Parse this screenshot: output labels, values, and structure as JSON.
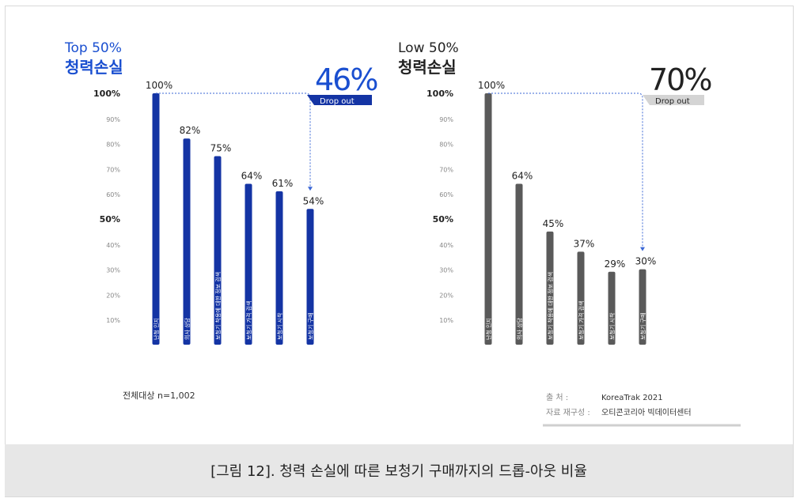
{
  "colors": {
    "top_bar": "#1434a4",
    "low_bar": "#5a5a5a",
    "top_title": "#1a4fd0",
    "low_title": "#222222",
    "low_badge": "#d4d4d4"
  },
  "chart_data": [
    {
      "type": "bar",
      "title": "Top 50%",
      "subtitle": "청력손실",
      "ylim": [
        0,
        100
      ],
      "y_ticks": [
        "10%",
        "20%",
        "30%",
        "40%",
        "50%",
        "60%",
        "70%",
        "80%",
        "90%",
        "100%"
      ],
      "categories": [
        "난청 인지",
        "의사 상담",
        "보청기 착용에 대한 정보 검색",
        "보청기 가격 검색",
        "보청기 시착",
        "보청기 구매"
      ],
      "values": [
        100,
        82,
        75,
        64,
        61,
        54
      ],
      "value_labels": [
        "100%",
        "82%",
        "75%",
        "64%",
        "61%",
        "54%"
      ],
      "drop_value": "46%",
      "drop_label": "Drop out"
    },
    {
      "type": "bar",
      "title": "Low 50%",
      "subtitle": "청력손실",
      "ylim": [
        0,
        100
      ],
      "y_ticks": [
        "10%",
        "20%",
        "30%",
        "40%",
        "50%",
        "60%",
        "70%",
        "80%",
        "90%",
        "100%"
      ],
      "categories": [
        "난청 인지",
        "의사 상담",
        "보청기 착용에 대한 정보 검색",
        "보청기 가격 검색",
        "보청기 시착",
        "보청기 구매"
      ],
      "values": [
        100,
        64,
        45,
        37,
        29,
        30
      ],
      "value_labels": [
        "100%",
        "64%",
        "45%",
        "37%",
        "29%",
        "30%"
      ],
      "drop_value": "70%",
      "drop_label": "Drop out"
    }
  ],
  "footnote_left": "전체대상 n=1,002",
  "source_label": "출        처 :",
  "source_value": "KoreaTrak 2021",
  "recompose_label": "자료 재구성 :",
  "recompose_value": "오티콘코리아 빅데이터센터",
  "caption": "[그림 12]. 청력 손실에 따른 보청기 구매까지의 드롭-아웃 비율"
}
